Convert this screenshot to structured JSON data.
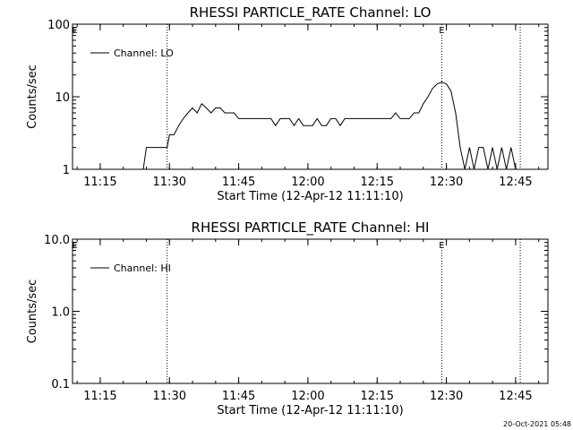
{
  "footer": {
    "timestamp": "20-Oct-2021 05:48"
  },
  "chart_data": [
    {
      "type": "line",
      "title": "RHESSI PARTICLE_RATE Channel: LO",
      "xlabel": "Start Time (12-Apr-12 11:11:10)",
      "ylabel": "Counts/sec",
      "yscale": "log",
      "ylim": [
        1,
        100
      ],
      "ytick_values": [
        1,
        10,
        100
      ],
      "ytick_labels": [
        "1",
        "10",
        "100"
      ],
      "xlim": [
        "11:09",
        "12:52"
      ],
      "xtick_values": [
        "11:15",
        "11:30",
        "11:45",
        "12:00",
        "12:15",
        "12:30",
        "12:45"
      ],
      "xtick_labels": [
        "11:15",
        "11:30",
        "11:45",
        "12:00",
        "12:15",
        "12:30",
        "12:45"
      ],
      "vlines": [
        "11:29:30",
        "12:29:00",
        "12:46:00"
      ],
      "markers": [
        {
          "text": "E",
          "x": "11:09:30"
        },
        {
          "text": "E",
          "x": "12:29:00"
        }
      ],
      "legend": {
        "position": "top-left"
      },
      "series": [
        {
          "name": "Channel: LO",
          "x": [
            "11:24:20",
            "11:25:00",
            "11:29:30",
            "11:30:00",
            "11:31:00",
            "11:32:00",
            "11:33:00",
            "11:34:00",
            "11:35:00",
            "11:36:00",
            "11:37:00",
            "11:38:00",
            "11:39:00",
            "11:40:00",
            "11:41:00",
            "11:42:00",
            "11:43:00",
            "11:44:00",
            "11:45:00",
            "11:46:00",
            "11:47:00",
            "11:48:00",
            "11:49:00",
            "11:50:00",
            "11:51:00",
            "11:52:00",
            "11:53:00",
            "11:54:00",
            "11:55:00",
            "11:56:00",
            "11:57:00",
            "11:58:00",
            "11:59:00",
            "12:00:00",
            "12:01:00",
            "12:02:00",
            "12:03:00",
            "12:04:00",
            "12:05:00",
            "12:06:00",
            "12:07:00",
            "12:08:00",
            "12:09:00",
            "12:10:00",
            "12:11:00",
            "12:12:00",
            "12:13:00",
            "12:14:00",
            "12:15:00",
            "12:16:00",
            "12:17:00",
            "12:18:00",
            "12:19:00",
            "12:20:00",
            "12:21:00",
            "12:22:00",
            "12:23:00",
            "12:24:00",
            "12:25:00",
            "12:26:00",
            "12:27:00",
            "12:28:00",
            "12:29:00",
            "12:30:00",
            "12:31:00",
            "12:32:00",
            "12:33:00",
            "12:34:00",
            "12:35:00",
            "12:36:00",
            "12:37:00",
            "12:38:00",
            "12:39:00",
            "12:40:00",
            "12:41:00",
            "12:42:00",
            "12:43:00",
            "12:44:00",
            "12:45:00"
          ],
          "y": [
            1,
            2,
            2,
            3,
            3,
            4,
            5,
            6,
            7,
            6,
            8,
            7,
            6,
            7,
            7,
            6,
            6,
            6,
            5,
            5,
            5,
            5,
            5,
            5,
            5,
            5,
            4,
            5,
            5,
            5,
            4,
            5,
            4,
            4,
            4,
            5,
            4,
            4,
            5,
            5,
            4,
            5,
            5,
            5,
            5,
            5,
            5,
            5,
            5,
            5,
            5,
            5,
            6,
            5,
            5,
            5,
            6,
            6,
            8,
            10,
            13,
            15,
            16,
            15,
            12,
            6,
            2,
            1,
            2,
            1,
            2,
            2,
            1,
            2,
            1,
            2,
            1,
            2,
            1
          ]
        }
      ]
    },
    {
      "type": "line",
      "title": "RHESSI PARTICLE_RATE Channel: HI",
      "xlabel": "Start Time (12-Apr-12 11:11:10)",
      "ylabel": "Counts/sec",
      "yscale": "log",
      "ylim": [
        0.1,
        10
      ],
      "ytick_values": [
        0.1,
        1,
        10
      ],
      "ytick_labels": [
        "0.1",
        "1.0",
        "10.0"
      ],
      "xlim": [
        "11:09",
        "12:52"
      ],
      "xtick_values": [
        "11:15",
        "11:30",
        "11:45",
        "12:00",
        "12:15",
        "12:30",
        "12:45"
      ],
      "xtick_labels": [
        "11:15",
        "11:30",
        "11:45",
        "12:00",
        "12:15",
        "12:30",
        "12:45"
      ],
      "vlines": [
        "11:29:30",
        "12:29:00",
        "12:46:00"
      ],
      "markers": [
        {
          "text": "E",
          "x": "11:09:30"
        },
        {
          "text": "E",
          "x": "12:29:00"
        }
      ],
      "legend": {
        "position": "top-left"
      },
      "series": [
        {
          "name": "Channel: HI",
          "x": [],
          "y": []
        }
      ]
    }
  ]
}
